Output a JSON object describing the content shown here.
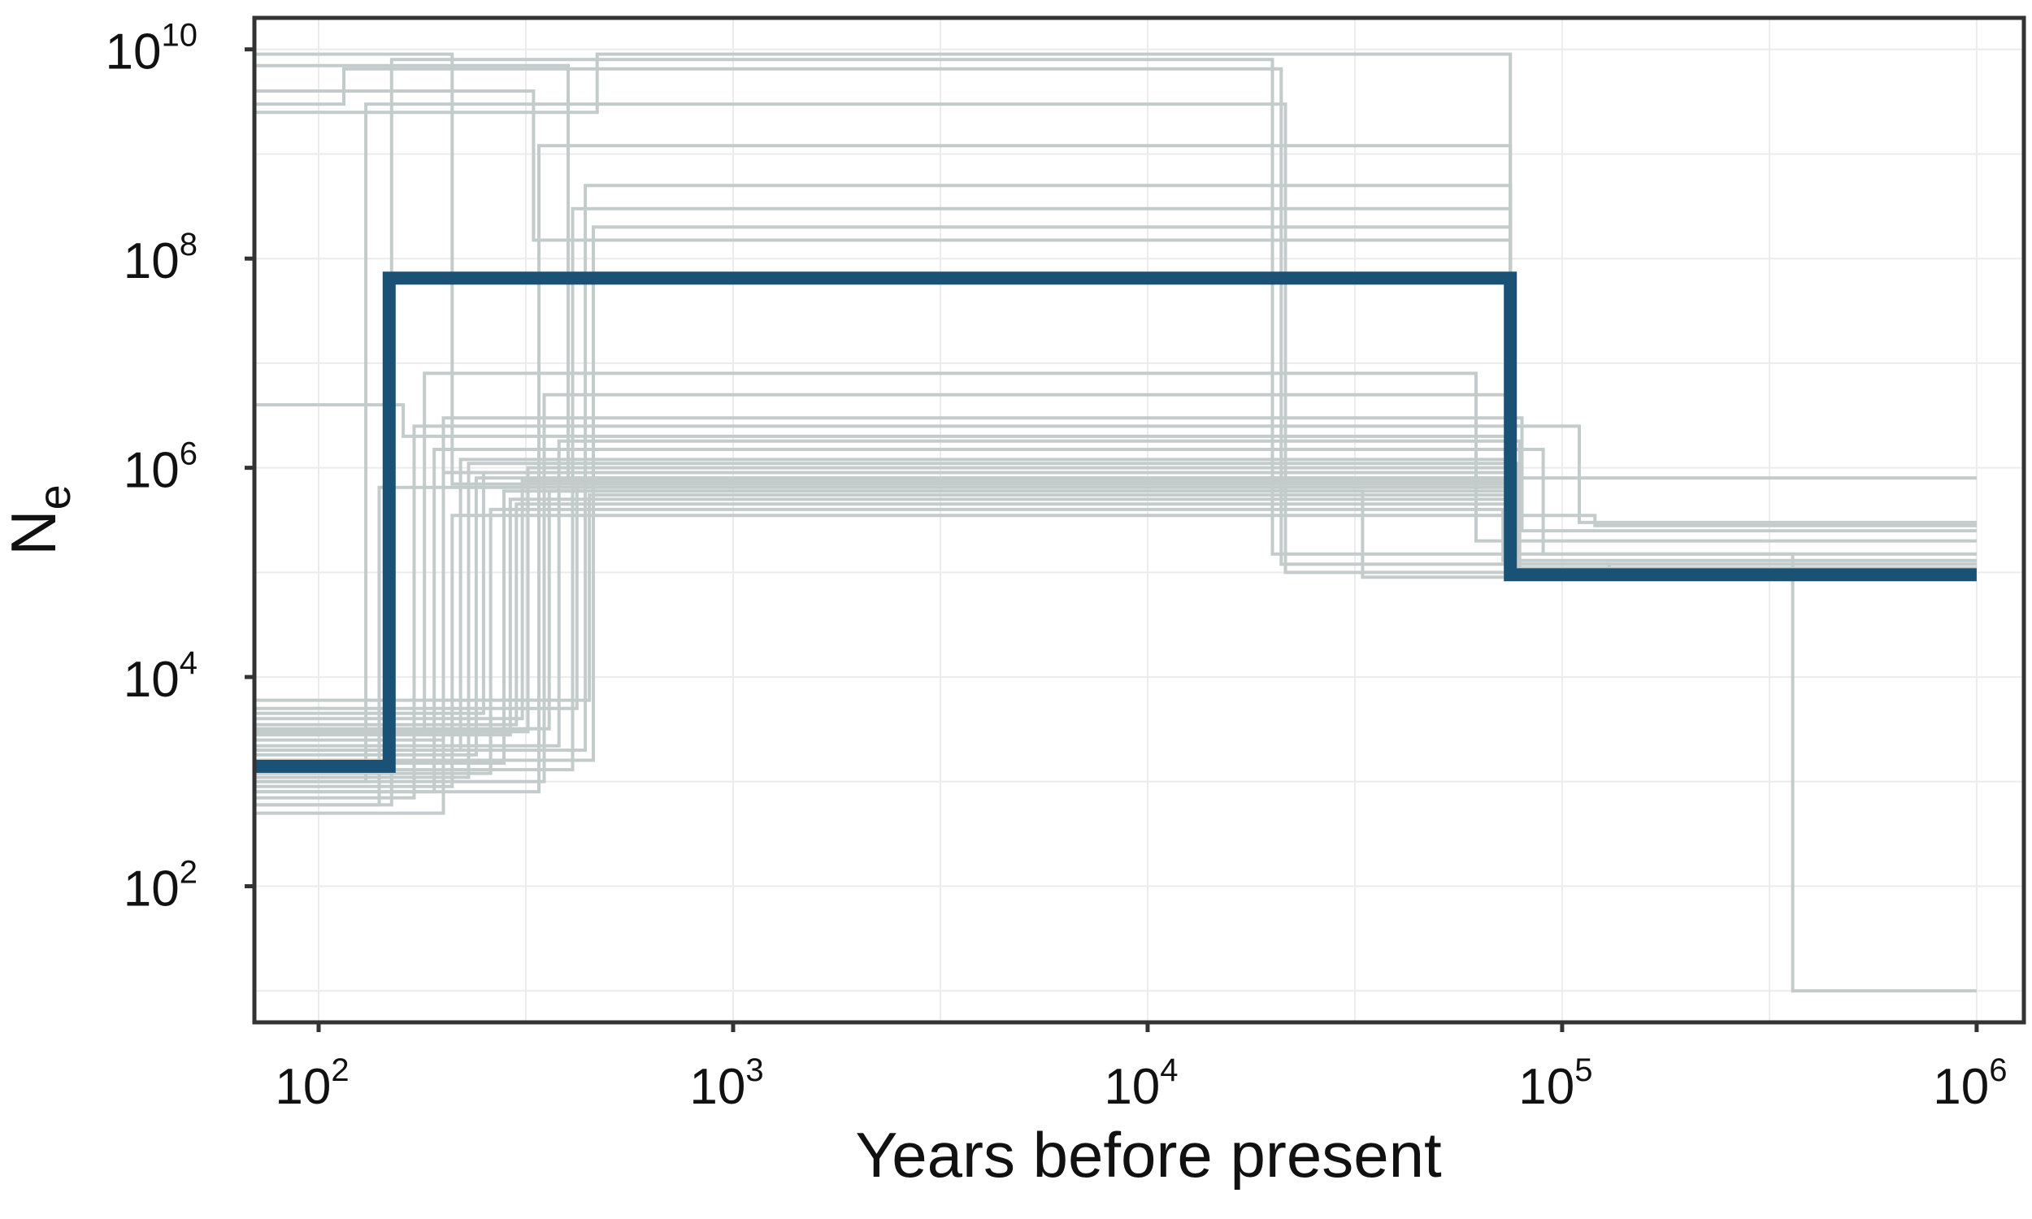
{
  "chart_data": {
    "type": "line",
    "title": "",
    "xlabel": "Years before present",
    "ylabel": {
      "base": "N",
      "subscript": "e"
    },
    "x_scale": "log",
    "y_scale": "log",
    "xlim": [
      70,
      1300000
    ],
    "ylim": [
      5,
      20000000000
    ],
    "x_ticks": [
      {
        "base": "10",
        "exp": "2",
        "value": 100
      },
      {
        "base": "10",
        "exp": "3",
        "value": 1000
      },
      {
        "base": "10",
        "exp": "4",
        "value": 10000
      },
      {
        "base": "10",
        "exp": "5",
        "value": 100000
      },
      {
        "base": "10",
        "exp": "6",
        "value": 1000000
      }
    ],
    "y_ticks": [
      {
        "base": "10",
        "exp": "2",
        "value": 100
      },
      {
        "base": "10",
        "exp": "4",
        "value": 10000
      },
      {
        "base": "10",
        "exp": "6",
        "value": 1000000
      },
      {
        "base": "10",
        "exp": "8",
        "value": 100000000
      },
      {
        "base": "10",
        "exp": "10",
        "value": 10000000000
      }
    ],
    "grid": true,
    "colors": {
      "replicate": "#c3cbcb",
      "median": "#1a5276",
      "grid": "#ececec",
      "frame": "#333333"
    },
    "median_series": {
      "x": [
        70,
        148,
        148,
        75000,
        75000,
        1000000
      ],
      "y": [
        1400,
        1400,
        65000000,
        65000000,
        95000,
        95000
      ]
    },
    "replicate_series": [
      {
        "x": [
          70,
          210,
          210,
          75000,
          75000,
          1000000
        ],
        "y": [
          9000000000,
          9000000000,
          700000,
          700000,
          95000,
          95000
        ]
      },
      {
        "x": [
          70,
          115,
          115,
          21000,
          21000,
          130000,
          130000,
          1000000
        ],
        "y": [
          3000000000,
          3000000000,
          6500000000,
          6500000000,
          120000,
          120000,
          110000,
          110000
        ]
      },
      {
        "x": [
          70,
          400,
          400,
          1000000
        ],
        "y": [
          7000000000,
          7000000000,
          800000,
          800000
        ]
      },
      {
        "x": [
          70,
          470,
          470,
          75000,
          75000,
          1000000
        ],
        "y": [
          2500000000,
          2500000000,
          9000000000,
          9000000000,
          100000,
          100000
        ]
      },
      {
        "x": [
          70,
          330,
          330,
          75000,
          75000,
          1000000
        ],
        "y": [
          4000000000,
          4000000000,
          150000000,
          150000000,
          95000,
          95000
        ]
      },
      {
        "x": [
          70,
          160,
          160,
          75000,
          75000,
          1000000
        ],
        "y": [
          4000000,
          4000000,
          2000000,
          2000000,
          90000,
          90000
        ]
      },
      {
        "x": [
          70,
          130,
          130,
          21500,
          21500,
          1000000
        ],
        "y": [
          1000,
          1000,
          3000000000,
          3000000000,
          100000,
          100000
        ]
      },
      {
        "x": [
          70,
          180,
          180,
          62000,
          62000,
          1000000
        ],
        "y": [
          3000,
          3000,
          8000000,
          8000000,
          200000,
          200000
        ]
      },
      {
        "x": [
          70,
          150,
          150,
          20000,
          20000,
          360000,
          360000,
          1000000
        ],
        "y": [
          600,
          600,
          8000000000,
          8000000000,
          150000,
          150000,
          10,
          10
        ]
      },
      {
        "x": [
          70,
          220,
          220,
          74000,
          74000,
          1000000
        ],
        "y": [
          2000,
          2000,
          1200000,
          1200000,
          100000,
          100000
        ]
      },
      {
        "x": [
          70,
          250,
          250,
          76000,
          76000,
          1000000
        ],
        "y": [
          4500,
          4500,
          900000,
          900000,
          110000,
          110000
        ]
      },
      {
        "x": [
          70,
          280,
          280,
          33000,
          33000,
          1000000
        ],
        "y": [
          1500,
          1500,
          600000,
          600000,
          90000,
          90000
        ]
      },
      {
        "x": [
          70,
          300,
          300,
          78000,
          78000,
          1000000
        ],
        "y": [
          3500,
          3500,
          450000,
          450000,
          120000,
          120000
        ]
      },
      {
        "x": [
          70,
          200,
          200,
          80000,
          80000,
          1000000
        ],
        "y": [
          2500,
          2500,
          3000000,
          3000000,
          250000,
          250000
        ]
      },
      {
        "x": [
          70,
          350,
          350,
          75000,
          75000,
          1000000
        ],
        "y": [
          1000,
          1000,
          5000000,
          5000000,
          95000,
          95000
        ]
      },
      {
        "x": [
          70,
          190,
          190,
          90000,
          90000,
          1000000
        ],
        "y": [
          800,
          800,
          1500000,
          1500000,
          150000,
          150000
        ]
      },
      {
        "x": [
          70,
          420,
          420,
          77000,
          77000,
          1000000
        ],
        "y": [
          5000,
          5000,
          700000,
          700000,
          100000,
          100000
        ]
      },
      {
        "x": [
          70,
          260,
          260,
          72000,
          72000,
          1000000
        ],
        "y": [
          1200,
          1200,
          400000,
          400000,
          130000,
          130000
        ]
      },
      {
        "x": [
          70,
          170,
          170,
          110000,
          110000,
          1000000
        ],
        "y": [
          700,
          700,
          2500000,
          2500000,
          300000,
          300000
        ]
      },
      {
        "x": [
          70,
          320,
          320,
          76000,
          76000,
          1000000
        ],
        "y": [
          3000,
          3000,
          1000000,
          1000000,
          100000,
          100000
        ]
      },
      {
        "x": [
          70,
          450,
          450,
          75000,
          75000,
          1000000
        ],
        "y": [
          6000,
          6000,
          550000,
          550000,
          95000,
          95000
        ]
      },
      {
        "x": [
          70,
          240,
          240,
          74000,
          74000,
          1000000
        ],
        "y": [
          1800,
          1800,
          800000,
          800000,
          100000,
          100000
        ]
      },
      {
        "x": [
          70,
          210,
          210,
          120000,
          120000,
          1000000
        ],
        "y": [
          900,
          900,
          350000,
          350000,
          280000,
          280000
        ]
      },
      {
        "x": [
          70,
          380,
          380,
          79000,
          79000,
          1000000
        ],
        "y": [
          2200,
          2200,
          1800000,
          1800000,
          110000,
          110000
        ]
      },
      {
        "x": [
          70,
          140,
          140,
          75000,
          75000,
          1000000
        ],
        "y": [
          600,
          600,
          650000,
          650000,
          95000,
          95000
        ]
      },
      {
        "x": [
          70,
          290,
          290,
          73000,
          73000,
          1000000
        ],
        "y": [
          2800,
          2800,
          500000,
          500000,
          100000,
          100000
        ]
      },
      {
        "x": [
          70,
          310,
          310,
          75000,
          75000,
          1000000
        ],
        "y": [
          4000,
          4000,
          750000,
          750000,
          95000,
          95000
        ]
      },
      {
        "x": [
          70,
          230,
          230,
          78000,
          78000,
          1000000
        ],
        "y": [
          1100,
          1100,
          1100000,
          1100000,
          100000,
          100000
        ]
      },
      {
        "x": [
          70,
          360,
          360,
          76000,
          76000,
          1000000
        ],
        "y": [
          3200,
          3200,
          600000,
          600000,
          100000,
          100000
        ]
      },
      {
        "x": [
          70,
          200,
          200,
          75000,
          75000,
          1000000
        ],
        "y": [
          500,
          500,
          900000,
          900000,
          95000,
          95000
        ]
      },
      {
        "x": [
          70,
          440,
          440,
          75000,
          75000,
          1000000
        ],
        "y": [
          2000,
          2000,
          500000000,
          500000000,
          100000,
          100000
        ]
      },
      {
        "x": [
          70,
          410,
          410,
          75000,
          75000,
          1000000
        ],
        "y": [
          1300,
          1300,
          300000000,
          300000000,
          95000,
          95000
        ]
      },
      {
        "x": [
          70,
          340,
          340,
          75000,
          75000,
          1000000
        ],
        "y": [
          800,
          800,
          1200000000,
          1200000000,
          100000,
          100000
        ]
      },
      {
        "x": [
          70,
          460,
          460,
          75000,
          75000,
          1000000
        ],
        "y": [
          1600,
          1600,
          200000000,
          200000000,
          95000,
          95000
        ]
      }
    ]
  }
}
